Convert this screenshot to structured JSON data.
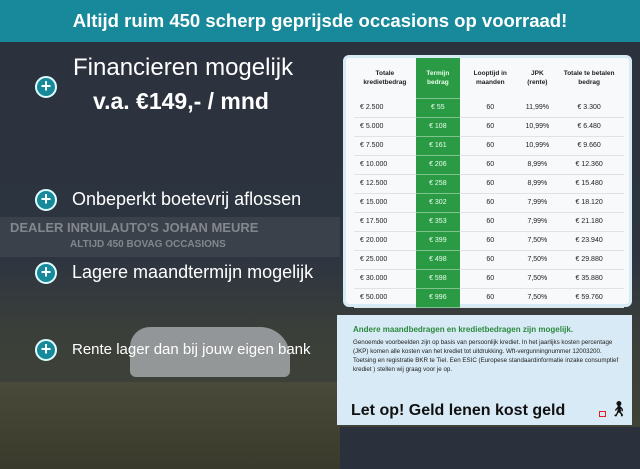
{
  "banner": {
    "text": "Altijd ruim 450 scherp geprijsde occasions op voorraad!"
  },
  "photo": {
    "sign_line1": "DEALER INRUILAUTO'S JOHAN MEURE",
    "sign_line2": "ALTIJD 450 BOVAG OCCASIONS"
  },
  "bullets": [
    {
      "icon": "plus-icon",
      "line1": "Financieren mogelijk",
      "line2": "v.a. €149,- / mnd"
    },
    {
      "icon": "plus-icon",
      "line1": "Onbeperkt boetevrij aflossen"
    },
    {
      "icon": "plus-icon",
      "line1": "Lagere maandtermijn mogelijk"
    },
    {
      "icon": "plus-icon",
      "line1": "Rente lager dan bij jouw eigen bank"
    }
  ],
  "table": {
    "headers": [
      "Totale kredietbedrag",
      "Termijn bedrag",
      "Looptijd in maanden",
      "JPK (rente)",
      "Totale te betalen bedrag"
    ],
    "rows": [
      [
        "€ 2.500",
        "€ 55",
        "60",
        "11,99%",
        "€ 3.300"
      ],
      [
        "€ 5.000",
        "€ 108",
        "60",
        "10,99%",
        "€ 6.480"
      ],
      [
        "€ 7.500",
        "€ 161",
        "60",
        "10,99%",
        "€ 9.660"
      ],
      [
        "€ 10.000",
        "€ 206",
        "60",
        "8,99%",
        "€ 12.360"
      ],
      [
        "€ 12.500",
        "€ 258",
        "60",
        "8,99%",
        "€ 15.480"
      ],
      [
        "€ 15.000",
        "€ 302",
        "60",
        "7,99%",
        "€ 18.120"
      ],
      [
        "€ 17.500",
        "€ 353",
        "60",
        "7,99%",
        "€ 21.180"
      ],
      [
        "€ 20.000",
        "€ 399",
        "60",
        "7,50%",
        "€ 23.940"
      ],
      [
        "€ 25.000",
        "€ 498",
        "60",
        "7,50%",
        "€ 29.880"
      ],
      [
        "€ 30.000",
        "€ 598",
        "60",
        "7,50%",
        "€ 35.880"
      ],
      [
        "€ 50.000",
        "€ 996",
        "60",
        "7,50%",
        "€ 59.760"
      ]
    ],
    "highlight_color": "#2b9a45"
  },
  "info": {
    "heading": "Andere maandbedragen en kredietbedragen zijn mogelijk.",
    "body": "Genoemde voorbeelden zijn op basis van persoonlijk krediet. In het jaarlijks kosten percentage (JKP) komen alle kosten van het krediet tot uitdrukking. Wft-vergunningnummer 12003200. Toetsing en registratie BKR te Tiel. Een ESIC (Europese standaardinformatie inzake consumptief krediet ) stellen wij graag voor je op.",
    "warning": "Let op! Geld lenen kost geld",
    "warning_icon": "walking-person-with-weight-icon"
  },
  "colors": {
    "banner": "#17899a",
    "accent_green": "#2b8a3e"
  }
}
